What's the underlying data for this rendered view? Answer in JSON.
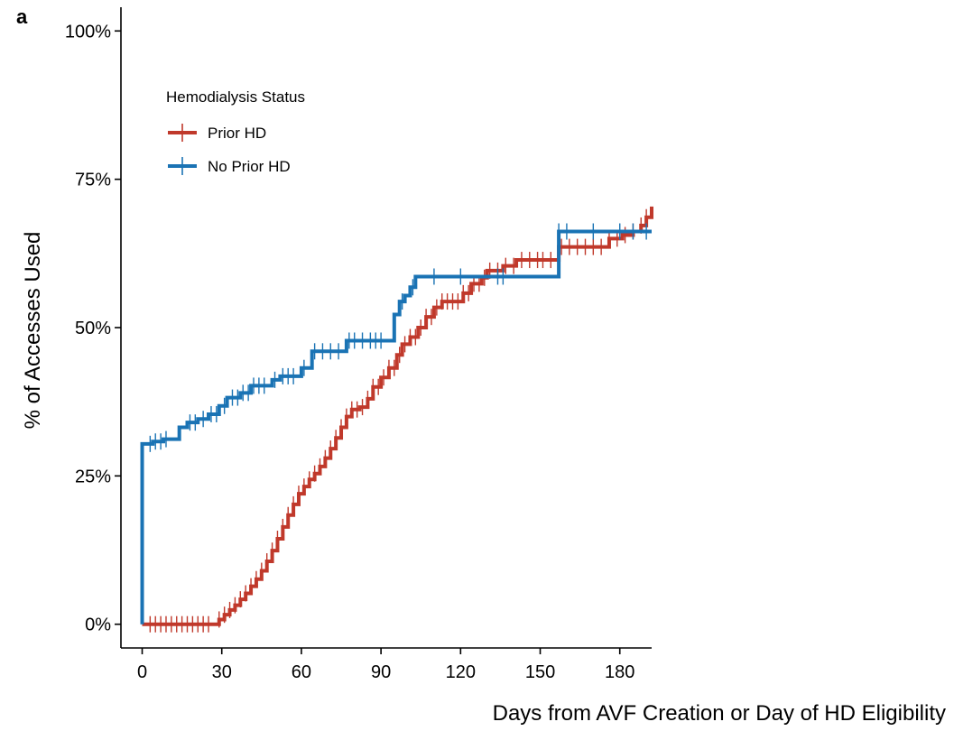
{
  "panel_label": "a",
  "chart_data": {
    "type": "line",
    "step": true,
    "title": "",
    "xlabel": "Days from AVF Creation or Day of HD Eligibility",
    "ylabel": "% of Accesses Used",
    "xlim": [
      -8,
      192
    ],
    "ylim": [
      -4,
      104
    ],
    "x_ticks": [
      0,
      30,
      60,
      90,
      120,
      150,
      180
    ],
    "y_ticks": [
      0,
      25,
      50,
      75,
      100
    ],
    "y_tick_labels": [
      "0%",
      "25%",
      "50%",
      "75%",
      "100%"
    ],
    "grid": false,
    "legend": {
      "title": "Hemodialysis Status",
      "placement": "top-left"
    },
    "series": [
      {
        "name": "Prior HD",
        "color": "#C0392B",
        "points": [
          [
            0,
            0
          ],
          [
            28,
            0
          ],
          [
            29,
            0.8
          ],
          [
            31,
            1.6
          ],
          [
            33,
            2.4
          ],
          [
            35,
            3.2
          ],
          [
            37,
            4.2
          ],
          [
            39,
            5.2
          ],
          [
            41,
            6.4
          ],
          [
            43,
            7.6
          ],
          [
            45,
            9
          ],
          [
            47,
            10.6
          ],
          [
            49,
            12.4
          ],
          [
            51,
            14.4
          ],
          [
            53,
            16.4
          ],
          [
            55,
            18.4
          ],
          [
            57,
            20.2
          ],
          [
            59,
            22
          ],
          [
            61,
            23.2
          ],
          [
            63,
            24.4
          ],
          [
            65,
            25.4
          ],
          [
            67,
            26.6
          ],
          [
            69,
            28
          ],
          [
            71,
            29.6
          ],
          [
            73,
            31.4
          ],
          [
            75,
            33.2
          ],
          [
            77,
            35
          ],
          [
            79,
            36.2
          ],
          [
            82,
            36.6
          ],
          [
            85,
            38
          ],
          [
            87,
            40
          ],
          [
            90,
            41.6
          ],
          [
            93,
            43.2
          ],
          [
            96,
            45.4
          ],
          [
            98,
            47.2
          ],
          [
            101,
            48.4
          ],
          [
            104,
            50
          ],
          [
            107,
            51.8
          ],
          [
            110,
            53.4
          ],
          [
            113,
            54.4
          ],
          [
            119,
            54.4
          ],
          [
            121,
            55.8
          ],
          [
            124,
            57.4
          ],
          [
            128,
            58.4
          ],
          [
            130,
            59.6
          ],
          [
            136,
            60.4
          ],
          [
            141,
            61.4
          ],
          [
            151,
            61.4
          ],
          [
            157,
            63.6
          ],
          [
            172,
            63.6
          ],
          [
            176,
            65
          ],
          [
            181,
            65.6
          ],
          [
            185,
            66.2
          ],
          [
            188,
            67.2
          ],
          [
            190,
            68.6
          ],
          [
            192,
            70.4
          ]
        ],
        "censor_x": [
          3,
          5,
          7,
          9,
          11,
          13,
          15,
          17,
          19,
          21,
          23,
          25,
          29,
          31,
          33,
          35,
          37,
          39,
          41,
          43,
          45,
          47,
          49,
          51,
          53,
          55,
          57,
          59,
          61,
          63,
          65,
          67,
          69,
          71,
          73,
          75,
          77,
          79,
          81,
          83,
          85,
          87,
          89,
          91,
          93,
          95,
          97,
          99,
          101,
          103,
          105,
          107,
          109,
          111,
          113,
          115,
          117,
          119,
          121,
          123,
          125,
          127,
          129,
          131,
          134,
          137,
          140,
          143,
          146,
          149,
          151,
          154,
          158,
          161,
          164,
          167,
          170,
          173,
          176,
          179,
          182,
          185,
          188,
          190
        ]
      },
      {
        "name": "No Prior HD",
        "color": "#1A73B4",
        "points": [
          [
            0,
            0
          ],
          [
            0,
            30.4
          ],
          [
            2,
            30.4
          ],
          [
            4,
            30.8
          ],
          [
            8,
            31.2
          ],
          [
            14,
            33.2
          ],
          [
            17,
            34
          ],
          [
            21,
            34.6
          ],
          [
            25,
            35.4
          ],
          [
            29,
            36.8
          ],
          [
            32,
            38.2
          ],
          [
            37,
            39
          ],
          [
            41,
            40.2
          ],
          [
            46,
            40.2
          ],
          [
            49,
            41.2
          ],
          [
            52,
            41.8
          ],
          [
            59,
            41.8
          ],
          [
            60,
            43.2
          ],
          [
            63,
            43.2
          ],
          [
            64,
            46
          ],
          [
            73,
            46
          ],
          [
            77,
            47.8
          ],
          [
            92,
            47.8
          ],
          [
            95,
            52.2
          ],
          [
            97,
            54.4
          ],
          [
            99,
            55.4
          ],
          [
            101,
            56.8
          ],
          [
            103,
            58.6
          ],
          [
            156,
            58.6
          ],
          [
            157,
            66.2
          ],
          [
            192,
            66.2
          ]
        ],
        "censor_x": [
          3,
          5,
          7,
          9,
          18,
          20,
          23,
          26,
          28,
          31,
          34,
          36,
          38,
          40,
          42,
          44,
          46,
          50,
          53,
          55,
          57,
          61,
          65,
          68,
          71,
          74,
          78,
          80,
          83,
          86,
          88,
          90,
          98,
          102,
          110,
          120,
          134,
          136,
          157,
          160,
          170,
          180,
          185,
          190
        ]
      }
    ]
  }
}
